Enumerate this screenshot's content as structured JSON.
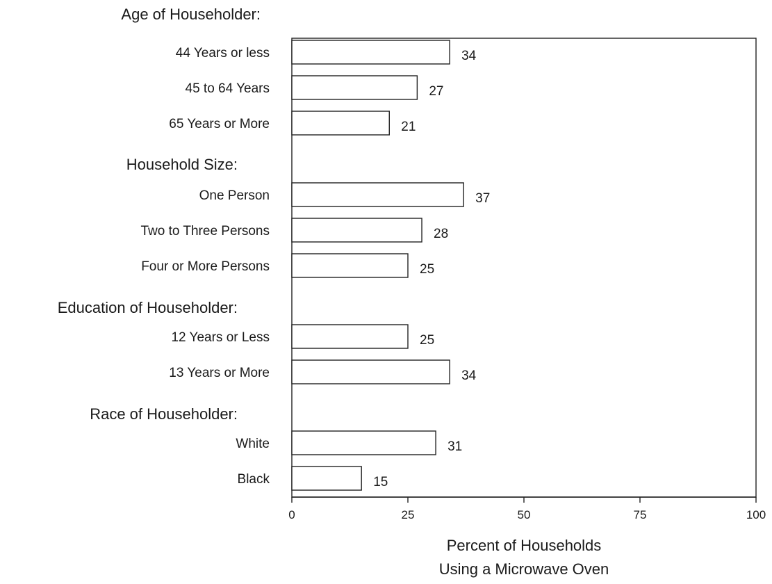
{
  "chart_data": {
    "type": "bar",
    "orientation": "horizontal",
    "groups": [
      {
        "name": "Age of Householder:",
        "items": [
          {
            "label": "44 Years or less",
            "value": 34
          },
          {
            "label": "45 to 64 Years",
            "value": 27
          },
          {
            "label": "65 Years or More",
            "value": 21
          }
        ]
      },
      {
        "name": "Household Size:",
        "items": [
          {
            "label": "One Person",
            "value": 37
          },
          {
            "label": "Two to Three Persons",
            "value": 28
          },
          {
            "label": "Four or More Persons",
            "value": 25
          }
        ]
      },
      {
        "name": "Education of Householder:",
        "items": [
          {
            "label": "12 Years or Less",
            "value": 25
          },
          {
            "label": "13 Years or More",
            "value": 34
          }
        ]
      },
      {
        "name": "Race of Householder:",
        "items": [
          {
            "label": "White",
            "value": 31
          },
          {
            "label": "Black",
            "value": 15
          }
        ]
      }
    ],
    "xticks": [
      "0",
      "25",
      "50",
      "75",
      "100"
    ],
    "xlim": [
      0,
      100
    ],
    "xlabel": [
      "Percent of Households",
      "Using a Microwave Oven"
    ],
    "grid": false,
    "legend": "none"
  }
}
